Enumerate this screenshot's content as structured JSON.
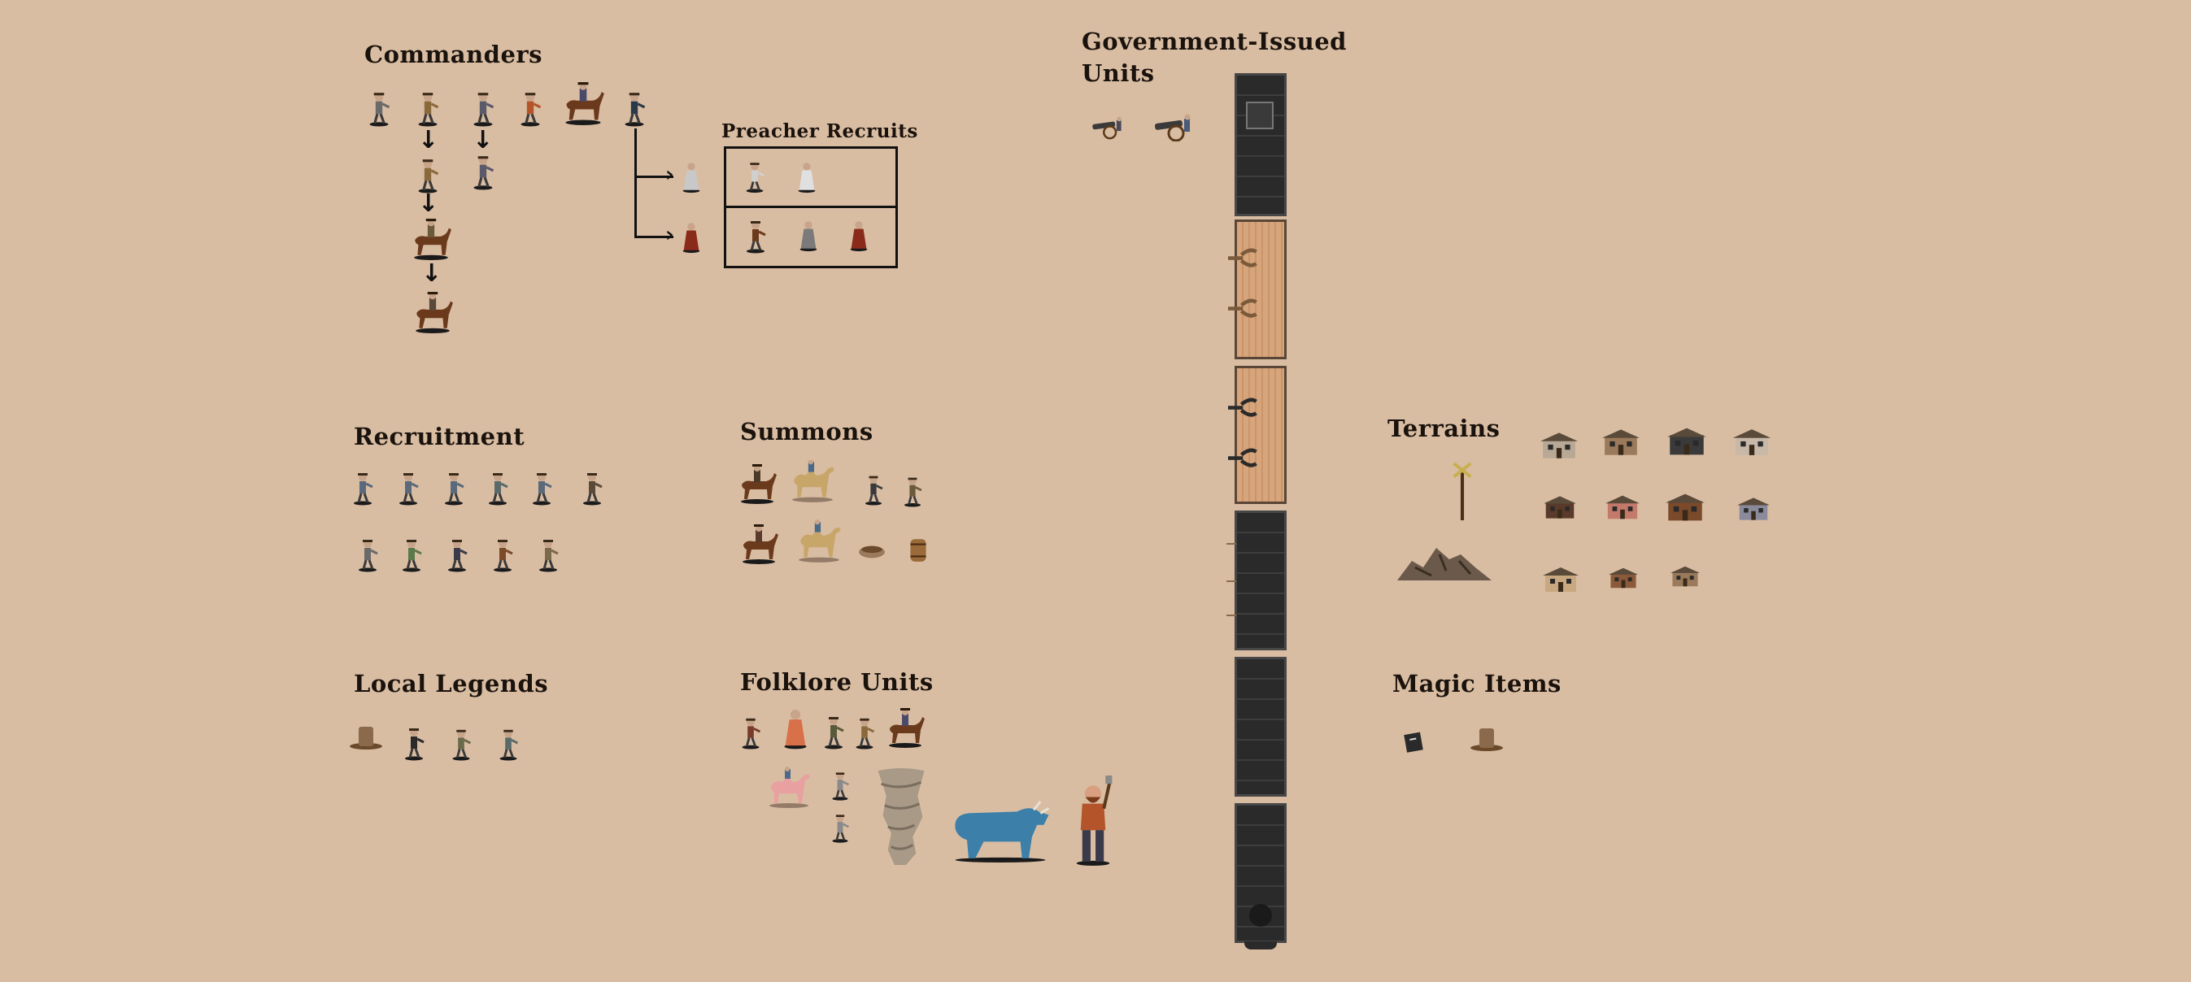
{
  "sections": {
    "commanders": "Commanders",
    "preacher_recruits": "Preacher Recruits",
    "government_issued": "Government-Issued Units",
    "recruitment": "Recruitment",
    "summons": "Summons",
    "terrains": "Terrains",
    "local_legends": "Local Legends",
    "folklore": "Folklore Units",
    "magic_items": "Magic Items"
  },
  "icons": {
    "arrow_down": "↓",
    "units": [
      "gunslinger",
      "cowboy",
      "preacher",
      "shaman",
      "mounted-rider",
      "sheriff",
      "priest",
      "nun",
      "camel-rider",
      "barrel",
      "cannon",
      "tornado",
      "blue-bull",
      "lumberjack",
      "hat",
      "spellbook",
      "signpost",
      "rock-pile",
      "saloon"
    ]
  },
  "colors": {
    "background": "#d9bda3",
    "title": "#1a120c",
    "rail_dark": "#2a2a2a",
    "rail_wood": "#d7a57c"
  }
}
